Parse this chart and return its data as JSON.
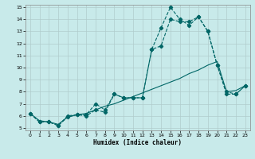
{
  "title": "",
  "xlabel": "Humidex (Indice chaleur)",
  "bg_color": "#c8eaea",
  "grid_color": "#b0cccc",
  "line_color": "#006666",
  "xlim": [
    -0.5,
    23.5
  ],
  "ylim": [
    4.8,
    15.2
  ],
  "xticks": [
    0,
    1,
    2,
    3,
    4,
    5,
    6,
    7,
    8,
    9,
    10,
    11,
    12,
    13,
    14,
    15,
    16,
    17,
    18,
    19,
    20,
    21,
    22,
    23
  ],
  "yticks": [
    5,
    6,
    7,
    8,
    9,
    10,
    11,
    12,
    13,
    14,
    15
  ],
  "series": [
    {
      "x": [
        0,
        1,
        2,
        3,
        4,
        5,
        6,
        7,
        8,
        9,
        10,
        11,
        12,
        13,
        14,
        15,
        16,
        17,
        18,
        19,
        20,
        21,
        22,
        23
      ],
      "y": [
        6.2,
        5.5,
        5.5,
        5.2,
        5.9,
        6.1,
        6.0,
        6.5,
        6.3,
        7.8,
        7.5,
        7.5,
        7.5,
        11.5,
        13.3,
        15.0,
        14.0,
        13.5,
        14.2,
        13.0,
        10.2,
        7.8,
        7.8,
        8.5
      ],
      "marker": "D",
      "linestyle": "--",
      "markersize": 2.2
    },
    {
      "x": [
        0,
        1,
        2,
        3,
        4,
        5,
        6,
        7,
        8,
        9,
        10,
        11,
        12,
        13,
        14,
        15,
        16,
        17,
        18,
        19,
        20,
        21,
        22,
        23
      ],
      "y": [
        6.2,
        5.6,
        5.5,
        5.3,
        5.9,
        6.1,
        6.2,
        6.5,
        6.8,
        7.0,
        7.3,
        7.6,
        7.9,
        8.2,
        8.5,
        8.8,
        9.1,
        9.5,
        9.8,
        10.2,
        10.5,
        8.0,
        8.1,
        8.5
      ],
      "marker": null,
      "linestyle": "-",
      "markersize": 0
    },
    {
      "x": [
        0,
        1,
        2,
        3,
        4,
        5,
        6,
        7,
        8,
        9,
        10,
        11,
        12,
        13,
        14,
        15,
        16,
        17,
        18,
        19,
        20,
        21,
        22,
        23
      ],
      "y": [
        6.2,
        5.5,
        5.5,
        5.2,
        6.0,
        6.1,
        6.1,
        7.0,
        6.5,
        7.8,
        7.5,
        7.5,
        7.5,
        11.5,
        11.8,
        14.0,
        13.8,
        13.8,
        14.2,
        13.0,
        10.2,
        8.0,
        7.8,
        8.5
      ],
      "marker": "D",
      "linestyle": "--",
      "markersize": 2.2
    }
  ]
}
